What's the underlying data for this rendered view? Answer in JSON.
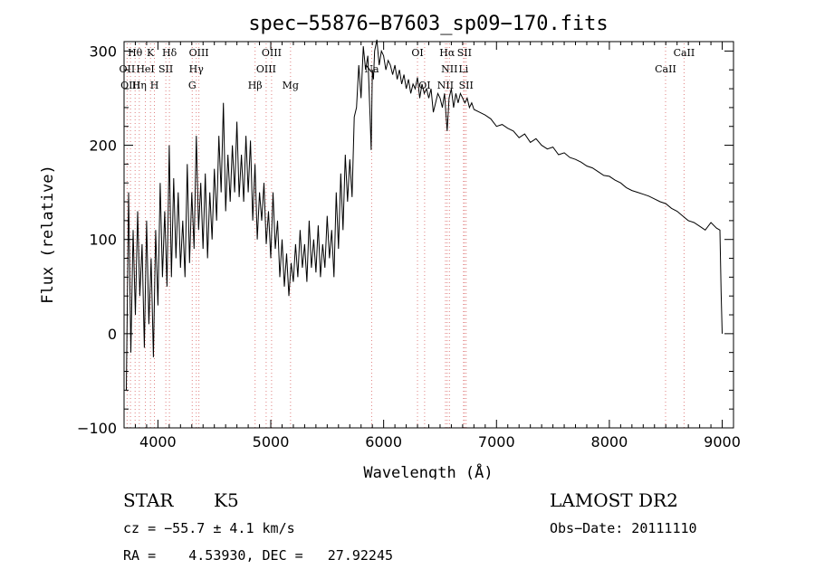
{
  "chart_data": {
    "type": "line",
    "title": "spec−55876−B7603_sp09−170.fits",
    "xlabel": "Wavelength (Å)",
    "ylabel": "Flux (relative)",
    "xlim": [
      3700,
      9100
    ],
    "ylim": [
      -100,
      310
    ],
    "xticks": [
      4000,
      5000,
      6000,
      7000,
      8000,
      9000
    ],
    "yticks": [
      -100,
      0,
      100,
      200,
      300
    ],
    "grid": false,
    "line_color": "#000000",
    "marker_color": "#e08080",
    "series": [
      {
        "x": [
          3720,
          3740,
          3760,
          3780,
          3800,
          3820,
          3840,
          3860,
          3880,
          3900,
          3920,
          3940,
          3960,
          3980,
          4000,
          4020,
          4040,
          4060,
          4080,
          4100,
          4120,
          4140,
          4160,
          4180,
          4200,
          4220,
          4240,
          4260,
          4280,
          4300,
          4320,
          4340,
          4360,
          4380,
          4400,
          4420,
          4440,
          4460,
          4480,
          4500,
          4520,
          4540,
          4560,
          4580,
          4600,
          4620,
          4640,
          4660,
          4680,
          4700,
          4720,
          4740,
          4760,
          4780,
          4800,
          4820,
          4840,
          4860,
          4880,
          4900,
          4920,
          4940,
          4960,
          4980,
          5000,
          5020,
          5040,
          5060,
          5080,
          5100,
          5120,
          5140,
          5160,
          5180,
          5200,
          5220,
          5240,
          5260,
          5280,
          5300,
          5320,
          5340,
          5360,
          5380,
          5400,
          5420,
          5440,
          5460,
          5480,
          5500,
          5520,
          5540,
          5560,
          5580,
          5600,
          5620,
          5640,
          5660,
          5680,
          5700,
          5720,
          5740,
          5760,
          5780,
          5800,
          5820,
          5840,
          5860,
          5880,
          5890,
          5900,
          5910,
          5920,
          5940,
          5960,
          5980,
          6000,
          6020,
          6040,
          6060,
          6080,
          6100,
          6120,
          6140,
          6160,
          6180,
          6200,
          6220,
          6240,
          6260,
          6280,
          6300,
          6320,
          6340,
          6360,
          6380,
          6400,
          6420,
          6440,
          6460,
          6480,
          6500,
          6520,
          6540,
          6563,
          6580,
          6600,
          6620,
          6640,
          6660,
          6680,
          6700,
          6720,
          6740,
          6760,
          6780,
          6800,
          6850,
          6900,
          6950,
          7000,
          7050,
          7100,
          7150,
          7200,
          7250,
          7300,
          7350,
          7400,
          7450,
          7500,
          7550,
          7600,
          7650,
          7700,
          7750,
          7800,
          7850,
          7900,
          7950,
          8000,
          8050,
          8100,
          8150,
          8200,
          8250,
          8300,
          8350,
          8400,
          8450,
          8500,
          8550,
          8600,
          8650,
          8700,
          8750,
          8800,
          8850,
          8900,
          8950,
          8980,
          8990,
          9000
        ],
        "y": [
          -60,
          150,
          -20,
          110,
          20,
          130,
          40,
          95,
          -15,
          120,
          10,
          80,
          -25,
          110,
          30,
          160,
          60,
          130,
          50,
          200,
          60,
          165,
          80,
          150,
          70,
          120,
          60,
          180,
          75,
          150,
          90,
          210,
          110,
          160,
          90,
          170,
          80,
          150,
          100,
          175,
          120,
          210,
          150,
          245,
          130,
          190,
          140,
          200,
          150,
          225,
          145,
          190,
          140,
          210,
          150,
          205,
          120,
          180,
          100,
          150,
          120,
          160,
          95,
          130,
          80,
          150,
          90,
          120,
          60,
          100,
          50,
          85,
          40,
          75,
          55,
          95,
          60,
          110,
          70,
          95,
          55,
          120,
          70,
          100,
          65,
          115,
          60,
          95,
          70,
          125,
          80,
          110,
          60,
          150,
          90,
          170,
          110,
          190,
          140,
          185,
          145,
          230,
          240,
          285,
          250,
          305,
          280,
          295,
          230,
          195,
          280,
          270,
          300,
          312,
          285,
          300,
          295,
          280,
          290,
          285,
          275,
          285,
          270,
          280,
          265,
          275,
          260,
          270,
          255,
          265,
          260,
          272,
          250,
          265,
          255,
          260,
          250,
          260,
          235,
          245,
          255,
          250,
          240,
          255,
          215,
          250,
          260,
          240,
          255,
          245,
          255,
          250,
          245,
          250,
          240,
          245,
          238,
          235,
          232,
          228,
          220,
          222,
          218,
          215,
          208,
          212,
          203,
          207,
          200,
          196,
          198,
          190,
          192,
          187,
          185,
          182,
          178,
          176,
          172,
          168,
          167,
          163,
          160,
          155,
          152,
          150,
          148,
          146,
          143,
          140,
          138,
          133,
          130,
          125,
          120,
          118,
          114,
          110,
          118,
          112,
          110,
          45,
          0
        ]
      }
    ],
    "lines": [
      {
        "label": "Hθ",
        "x": 3798,
        "row": 0
      },
      {
        "label": "OII",
        "x": 3727,
        "row": 1
      },
      {
        "label": "OIII",
        "x": 3757,
        "row": 2
      },
      {
        "label": "Hη",
        "x": 3835,
        "row": 2
      },
      {
        "label": "HeI",
        "x": 3889,
        "row": 1
      },
      {
        "label": "K",
        "x": 3934,
        "row": 0
      },
      {
        "label": "H",
        "x": 3969,
        "row": 2
      },
      {
        "label": "SII",
        "x": 4070,
        "row": 1
      },
      {
        "label": "Hδ",
        "x": 4102,
        "row": 0
      },
      {
        "label": "G",
        "x": 4304,
        "row": 2
      },
      {
        "label": "Hγ",
        "x": 4340,
        "row": 1
      },
      {
        "label": "OIII",
        "x": 4363,
        "row": 0
      },
      {
        "label": "Hβ",
        "x": 4861,
        "row": 2
      },
      {
        "label": "OIII",
        "x": 4959,
        "row": 1
      },
      {
        "label": "OIII",
        "x": 5007,
        "row": 0
      },
      {
        "label": "Mg",
        "x": 5175,
        "row": 2
      },
      {
        "label": "Na",
        "x": 5894,
        "row": 1
      },
      {
        "label": "OI",
        "x": 6300,
        "row": 0
      },
      {
        "label": "OI",
        "x": 6363,
        "row": 2
      },
      {
        "label": "NII",
        "x": 6548,
        "row": 2
      },
      {
        "label": "Hα",
        "x": 6563,
        "row": 0
      },
      {
        "label": "NII",
        "x": 6583,
        "row": 1
      },
      {
        "label": "Li",
        "x": 6708,
        "row": 1
      },
      {
        "label": "SII",
        "x": 6716,
        "row": 0
      },
      {
        "label": "SII",
        "x": 6731,
        "row": 2
      },
      {
        "label": "CaII",
        "x": 8498,
        "row": 1
      },
      {
        "label": "CaII",
        "x": 8662,
        "row": 0
      }
    ]
  },
  "info": {
    "class_label": "STAR",
    "subclass": "K5",
    "survey": "LAMOST DR2",
    "velocity": "cz = −55.7 ± 4.1 km/s",
    "obs_date": "Obs−Date: 20111110",
    "coords": "RA =    4.53930, DEC =   27.92245"
  }
}
